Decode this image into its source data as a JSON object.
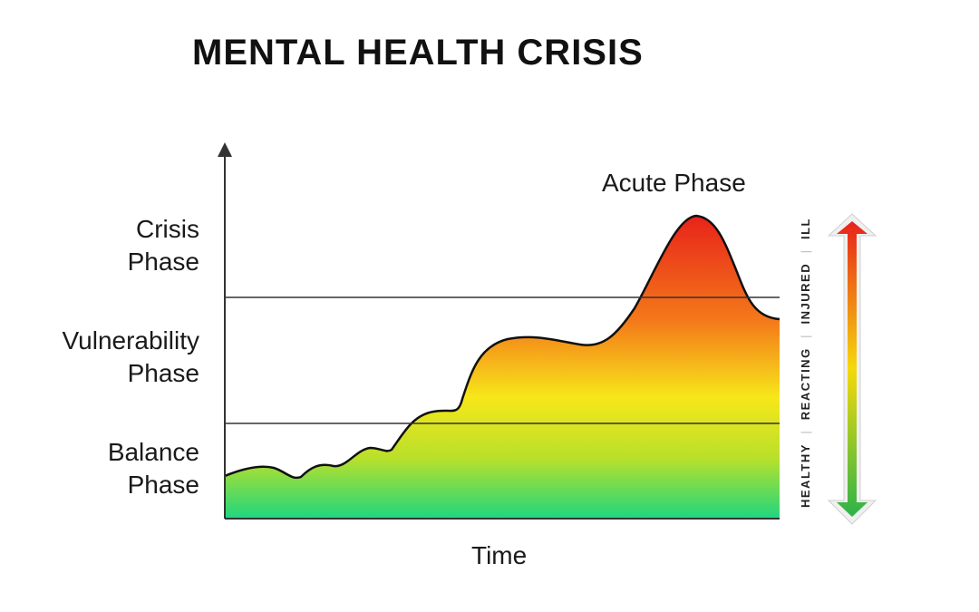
{
  "title": "MENTAL HEALTH CRISIS",
  "y_phases": [
    {
      "line1": "Crisis",
      "line2": "Phase"
    },
    {
      "line1": "Vulnerability",
      "line2": "Phase"
    },
    {
      "line1": "Balance",
      "line2": "Phase"
    }
  ],
  "x_label": "Time",
  "peak_label": "Acute Phase",
  "scale": {
    "labels": [
      "HEALTHY",
      "REACTING",
      "INJURED",
      "ILL"
    ],
    "separator": "|",
    "colors": {
      "bottom": "#2db34a",
      "middle": "#f5d90a",
      "top": "#e8211c"
    }
  },
  "fill_colors": {
    "top": "#e8231a",
    "upper": "#f47a1a",
    "middle": "#f7e71a",
    "lower": "#b9e02a",
    "bottom": "#1fd67f"
  }
}
